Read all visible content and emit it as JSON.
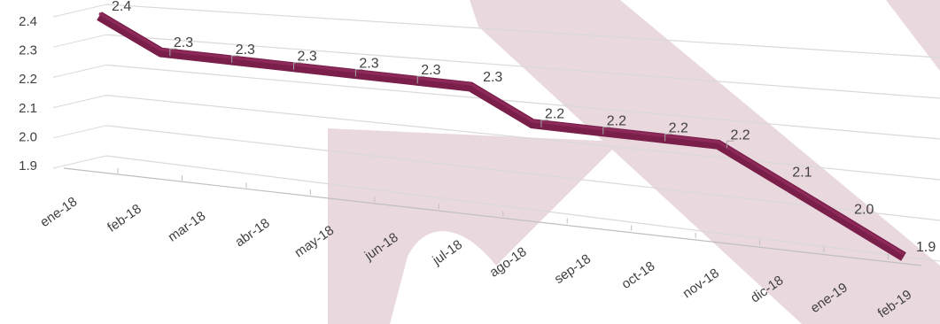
{
  "chart_data": {
    "type": "line",
    "style": "3d-perspective",
    "categories": [
      "ene-18",
      "feb-18",
      "mar-18",
      "abr-18",
      "may-18",
      "jun-18",
      "jul-18",
      "ago-18",
      "sep-18",
      "oct-18",
      "nov-18",
      "dic-18",
      "ene-19",
      "feb-19"
    ],
    "values": [
      2.4,
      2.3,
      2.3,
      2.3,
      2.3,
      2.3,
      2.3,
      2.2,
      2.2,
      2.2,
      2.2,
      2.1,
      2.0,
      1.9
    ],
    "data_labels": [
      "2.4",
      "2.3",
      "2.3",
      "2.3",
      "2.3",
      "2.3",
      "2.3",
      "2.2",
      "2.2",
      "2.2",
      "2.2",
      "2.1",
      "2.0",
      "1.9"
    ],
    "y_ticks": [
      "1.9",
      "2.0",
      "2.1",
      "2.2",
      "2.3",
      "2.4"
    ],
    "ylim": [
      1.9,
      2.4
    ],
    "grid": true,
    "legend": "none",
    "title": "",
    "xlabel": "",
    "ylabel": "",
    "colors": {
      "line": "#7a1f4a",
      "line_highlight": "#8e2a5a",
      "grid": "#d9d9d9",
      "watermark": "#ead8df"
    }
  }
}
